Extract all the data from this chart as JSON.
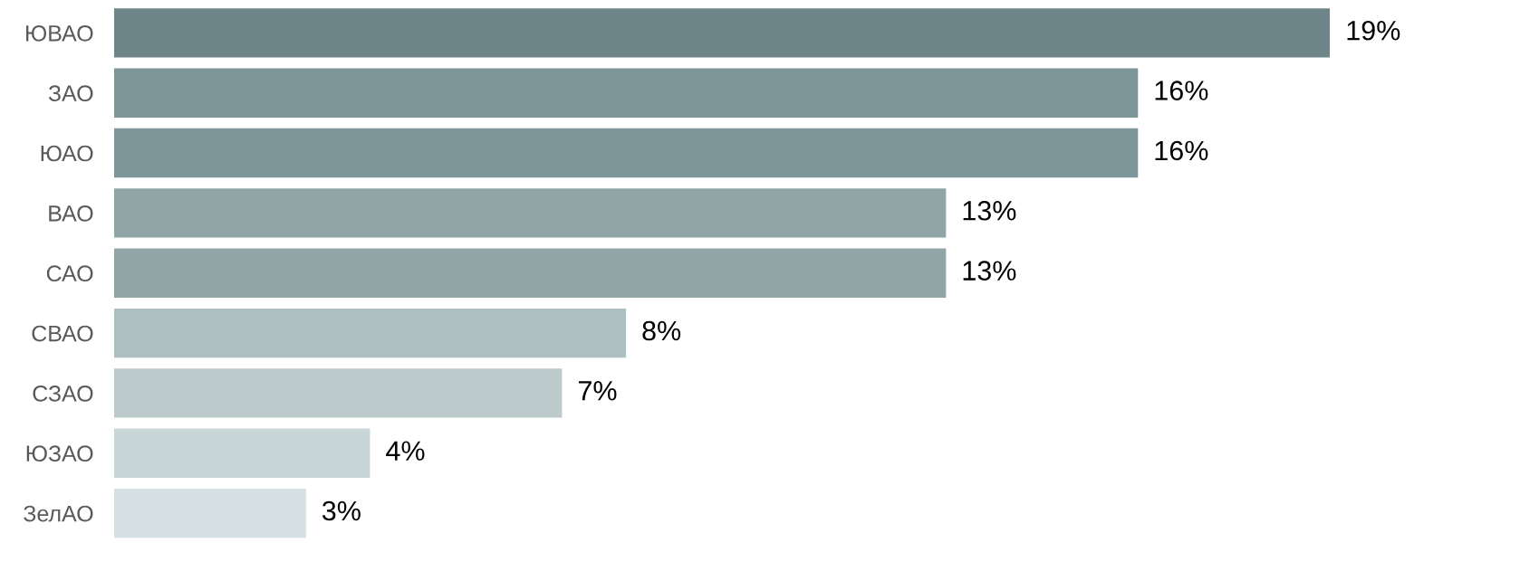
{
  "chart_data": {
    "type": "bar",
    "orientation": "horizontal",
    "categories": [
      "ЮВАО",
      "ЗАО",
      "ЮАО",
      "ВАО",
      "САО",
      "СВАО",
      "СЗАО",
      "ЮЗАО",
      "ЗелАО"
    ],
    "values": [
      19,
      16,
      16,
      13,
      13,
      8,
      7,
      4,
      3
    ],
    "colors": [
      "#6e8689",
      "#7c9597",
      "#7e9699",
      "#91a5a7",
      "#91a5a7",
      "#aebfc1",
      "#bccacc",
      "#c9d6d8",
      "#d4e0e2"
    ],
    "value_labels": [
      "19%",
      "16%",
      "16%",
      "13%",
      "13%",
      "8%",
      "7%",
      "4%",
      "3%"
    ]
  }
}
